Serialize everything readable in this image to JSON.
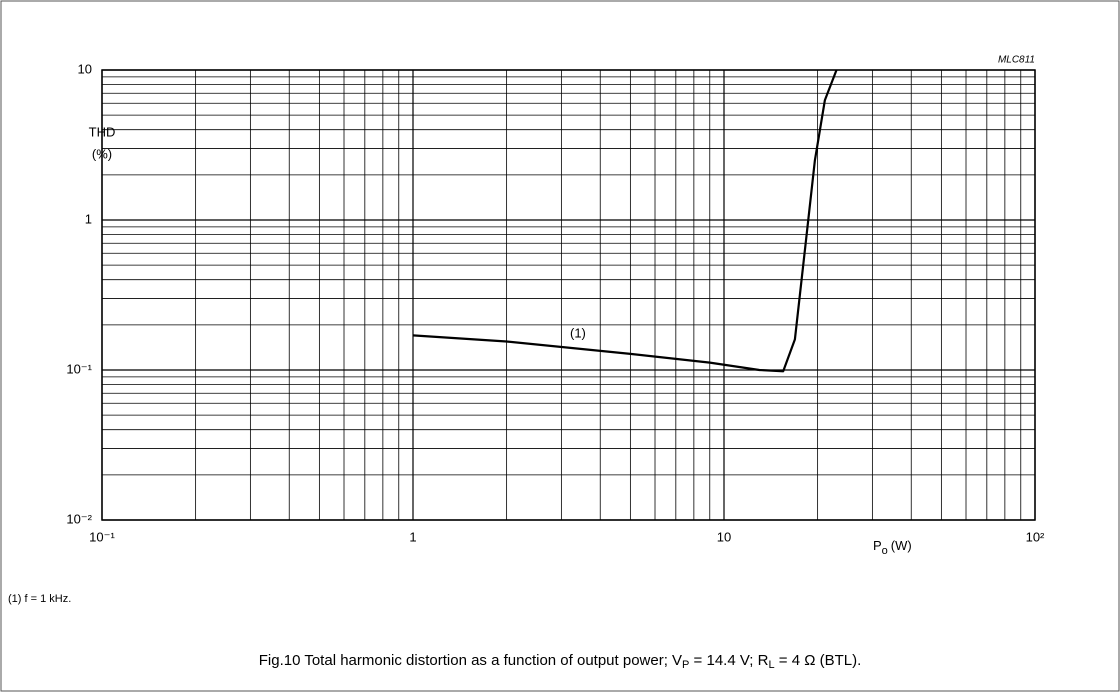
{
  "chart_data": {
    "type": "line",
    "ylabel": [
      "THD",
      "(%)"
    ],
    "xlabel": {
      "symbol": "P",
      "subscript": "o",
      "unit": "(W)"
    },
    "code": "MLC811",
    "annotation": "(1)",
    "footnote": "(1)  f = 1 kHz.",
    "caption": [
      {
        "text": "Fig.10  Total harmonic distortion as a function of output power; V"
      },
      {
        "text": "P",
        "sub": true
      },
      {
        "text": " = 14.4 V; R"
      },
      {
        "text": "L",
        "sub": true
      },
      {
        "text": " = 4 Ω (BTL)."
      }
    ],
    "xscale": "log",
    "yscale": "log",
    "grid": true,
    "xlim": [
      0.1,
      100
    ],
    "ylim": [
      0.01,
      10
    ],
    "xticks": [
      {
        "value": 0.1,
        "label": "10⁻¹"
      },
      1,
      10,
      {
        "value": 100,
        "label": "10²"
      }
    ],
    "yticks": [
      {
        "value": 0.01,
        "label": "10⁻²"
      },
      {
        "value": 0.1,
        "label": "10⁻¹"
      },
      1,
      10
    ],
    "series": [
      {
        "color": "#000000",
        "x": [
          1,
          2,
          5,
          9,
          13,
          15.5,
          16.9,
          18.2,
          19.6,
          21.1,
          23
        ],
        "values": [
          0.17,
          0.155,
          0.128,
          0.112,
          0.1,
          0.098,
          0.16,
          0.63,
          2.5,
          6.3,
          10
        ]
      }
    ]
  }
}
